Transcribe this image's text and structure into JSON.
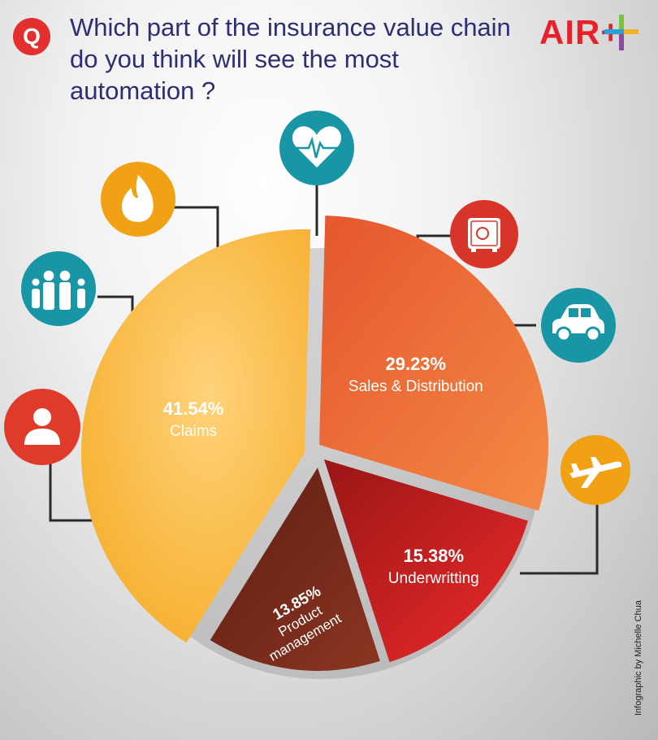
{
  "header": {
    "badge": "Q",
    "title": "Which part of the insurance value chain do you think will see the most automation ?",
    "logo": "AIR+"
  },
  "credit": "Infographic by Michelle Chua",
  "chart_data": {
    "type": "pie",
    "title": "Which part of the insurance value chain do you think will see the most automation ?",
    "slices": [
      {
        "label": "Claims",
        "value": 41.54,
        "value_label": "41.54%",
        "color": "#fbb930"
      },
      {
        "label": "Sales & Distribution",
        "value": 29.23,
        "value_label": "29.23%",
        "color": "#ea6a33"
      },
      {
        "label": "Underwritting",
        "value": 15.38,
        "value_label": "15.38%",
        "color": "#d62027"
      },
      {
        "label": "Product management",
        "value": 13.85,
        "value_label": "13.85%",
        "color": "#7e2d1d"
      }
    ]
  },
  "icons": [
    {
      "name": "person-icon",
      "color": "#e03a2a"
    },
    {
      "name": "family-icon",
      "color": "#1996a6"
    },
    {
      "name": "fire-icon",
      "color": "#f1a114"
    },
    {
      "name": "heart-rate-icon",
      "color": "#1996a6"
    },
    {
      "name": "safe-icon",
      "color": "#d8352a"
    },
    {
      "name": "car-icon",
      "color": "#1996a6"
    },
    {
      "name": "airplane-icon",
      "color": "#f1a114"
    }
  ]
}
